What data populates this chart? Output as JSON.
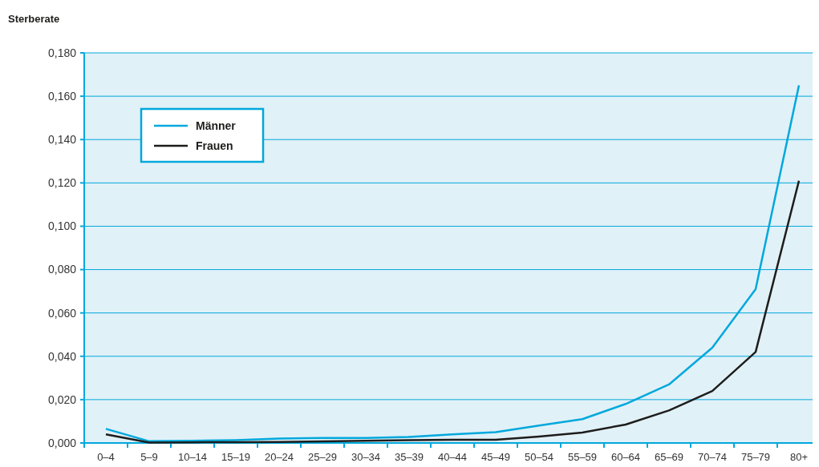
{
  "chart_data": {
    "type": "line",
    "ylabel": "Sterberate",
    "categories": [
      "0–4",
      "5–9",
      "10–14",
      "15–19",
      "20–24",
      "25–29",
      "30–34",
      "35–39",
      "40–44",
      "45–49",
      "50–54",
      "55–59",
      "60–64",
      "65–69",
      "70–74",
      "75–79",
      "80+"
    ],
    "series": [
      {
        "name": "Männer",
        "color": "#00a8dc",
        "values": [
          0.0065,
          0.0008,
          0.001,
          0.0013,
          0.002,
          0.0023,
          0.0023,
          0.0028,
          0.004,
          0.005,
          0.008,
          0.011,
          0.018,
          0.027,
          0.044,
          0.071,
          0.165
        ]
      },
      {
        "name": "Frauen",
        "color": "#1d1d1b",
        "values": [
          0.004,
          0.0002,
          0.0003,
          0.0004,
          0.0005,
          0.0007,
          0.001,
          0.0013,
          0.0015,
          0.0015,
          0.003,
          0.0048,
          0.0085,
          0.015,
          0.024,
          0.042,
          0.121
        ]
      }
    ],
    "ylim": [
      0,
      0.18
    ],
    "yticks": [
      {
        "value": 0,
        "label": "0,000"
      },
      {
        "value": 0.02,
        "label": "0,020"
      },
      {
        "value": 0.04,
        "label": "0,040"
      },
      {
        "value": 0.06,
        "label": "0,060"
      },
      {
        "value": 0.08,
        "label": "0,080"
      },
      {
        "value": 0.1,
        "label": "0,100"
      },
      {
        "value": 0.12,
        "label": "0,120"
      },
      {
        "value": 0.14,
        "label": "0,140"
      },
      {
        "value": 0.16,
        "label": "0,160"
      },
      {
        "value": 0.18,
        "label": "0,180"
      }
    ],
    "grid": "y",
    "legend": "top left",
    "marker": "none",
    "line_style": "solid"
  }
}
